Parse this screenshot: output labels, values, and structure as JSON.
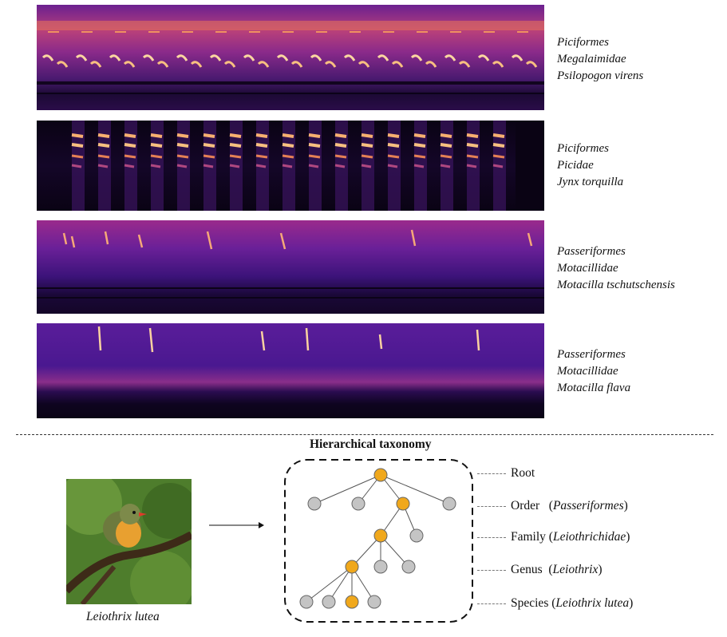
{
  "spectrograms": [
    {
      "order": "Piciformes",
      "family": "Megalaimidae",
      "species": "Psilopogon virens"
    },
    {
      "order": "Piciformes",
      "family": "Picidae",
      "species": "Jynx torquilla"
    },
    {
      "order": "Passeriformes",
      "family": "Motacillidae",
      "species": "Motacilla tschutschensis"
    },
    {
      "order": "Passeriformes",
      "family": "Motacillidae",
      "species": "Motacilla flava"
    }
  ],
  "taxonomy": {
    "title": "Hierarchical taxonomy",
    "image_caption": "Leiothrix lutea",
    "levels": [
      {
        "name": "Root",
        "example": ""
      },
      {
        "name": "Order",
        "example": "Passeriformes"
      },
      {
        "name": "Family",
        "example": "Leiothrichidae"
      },
      {
        "name": "Genus",
        "example": "Leiothrix"
      },
      {
        "name": "Species",
        "example": "Leiothrix lutea"
      }
    ]
  },
  "colors": {
    "highlight_node": "#f0a81c",
    "other_node": "#c4c4c4",
    "spectrogram_dark": "#0e0420",
    "spectrogram_mid": "#5a1d8a",
    "spectrogram_hot": "#f5b060"
  }
}
